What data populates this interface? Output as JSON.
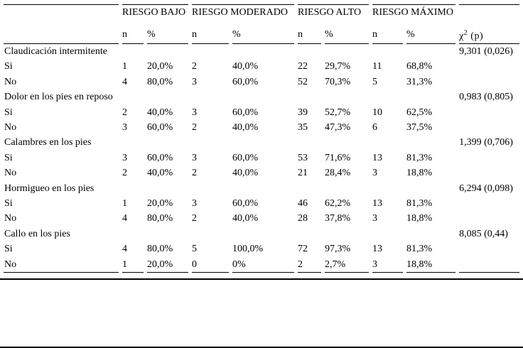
{
  "table": {
    "groups": [
      "RIESGO BAJO",
      "RIESGO MODERADO",
      "RIESGO ALTO",
      "RIESGO MÁXIMO"
    ],
    "sub": {
      "n": "n",
      "pct": "%"
    },
    "chi_header": {
      "chi": "χ",
      "sup": "2",
      "p": "(p)"
    },
    "sections": [
      {
        "title": "Claudicación intermitente",
        "chi": "9,301 (0,026)",
        "rows": [
          {
            "label": "Si",
            "cells": [
              "1",
              "20,0%",
              "2",
              "40,0%",
              "22",
              "29,7%",
              "11",
              "68,8%"
            ]
          },
          {
            "label": "No",
            "cells": [
              "4",
              "80,0%",
              "3",
              "60,0%",
              "52",
              "70,3%",
              "5",
              "31,3%"
            ]
          }
        ]
      },
      {
        "title": "Dolor en los pies en reposo",
        "chi": "0,983 (0,805)",
        "rows": [
          {
            "label": "Si",
            "cells": [
              "2",
              "40,0%",
              "3",
              "60,0%",
              "39",
              "52,7%",
              "10",
              "62,5%"
            ]
          },
          {
            "label": "No",
            "cells": [
              "3",
              "60,0%",
              "2",
              "40,0%",
              "35",
              "47,3%",
              "6",
              "37,5%"
            ]
          }
        ]
      },
      {
        "title": "Calambres en los pies",
        "chi": "1,399 (0,706)",
        "rows": [
          {
            "label": "Si",
            "cells": [
              "3",
              "60,0%",
              "3",
              "60,0%",
              "53",
              "71,6%",
              "13",
              "81,3%"
            ]
          },
          {
            "label": "No",
            "cells": [
              "2",
              "40,0%",
              "2",
              "40,0%",
              "21",
              "28,4%",
              "3",
              "18,8%"
            ]
          }
        ]
      },
      {
        "title": "Hormigueo en los pies",
        "chi": "6,294 (0,098)",
        "rows": [
          {
            "label": "Si",
            "cells": [
              "1",
              "20,0%",
              "3",
              "60,0%",
              "46",
              "62,2%",
              "13",
              "81,3%"
            ]
          },
          {
            "label": "No",
            "cells": [
              "4",
              "80,0%",
              "2",
              "40,0%",
              "28",
              "37,8%",
              "3",
              "18,8%"
            ]
          }
        ]
      },
      {
        "title": "Callo en los pies",
        "chi": "8,085 (0,44)",
        "rows": [
          {
            "label": "Si",
            "cells": [
              "4",
              "80,0%",
              "5",
              "100,0%",
              "72",
              "97,3%",
              "13",
              "81,3%"
            ]
          },
          {
            "label": "No",
            "cells": [
              "1",
              "20,0%",
              "0",
              "0%",
              "2",
              "2,7%",
              "3",
              "18,8%"
            ]
          }
        ]
      }
    ]
  }
}
